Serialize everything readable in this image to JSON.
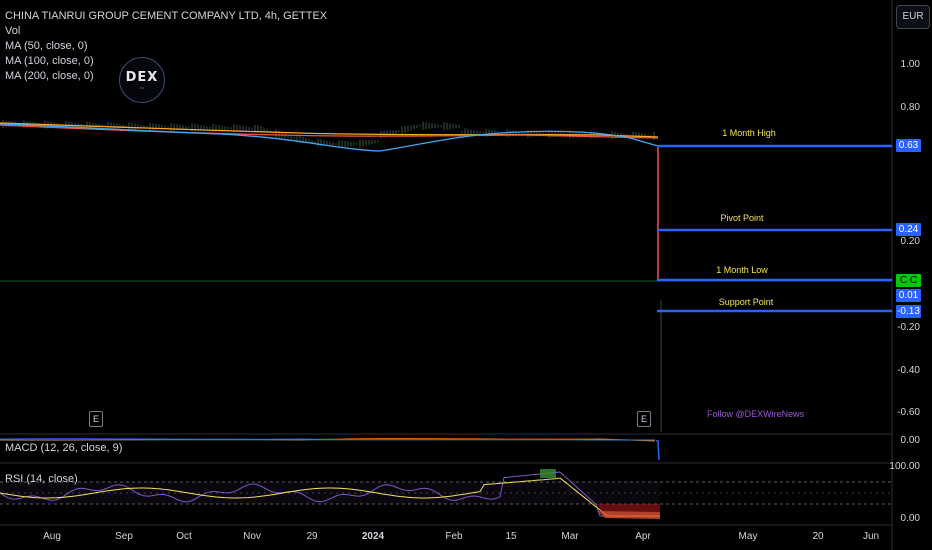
{
  "symbol_title": "CHINA TIANRUI GROUP CEMENT COMPANY LTD, 4h, GETTEX",
  "indicators": [
    "Vol",
    "MA (50, close, 0)",
    "MA (100, close, 0)",
    "MA (200, close, 0)"
  ],
  "currency": "EUR",
  "logo": {
    "text": "DEX",
    "icon": "dex-logo-icon"
  },
  "price_axis": [
    "1.00",
    "0.80",
    "0.20",
    "-0.20",
    "-0.40",
    "-0.60"
  ],
  "levels": [
    {
      "label": "1 Month High",
      "value": "0.63",
      "color": "#2962ff"
    },
    {
      "label": "Pivot Point",
      "value": "0.24",
      "color": "#2962ff"
    },
    {
      "label": "1 Month Low",
      "value": "0.01",
      "color": "#2962ff"
    },
    {
      "label": "Support Point",
      "value": "-0.13",
      "color": "#2962ff"
    }
  ],
  "last_price_tag": {
    "text": "C C",
    "color": "#00c805"
  },
  "earnings_markers": [
    "E",
    "E"
  ],
  "watermark": "Follow @DEXWireNews",
  "macd": {
    "title": "MACD (12, 26, close, 9)",
    "axis": [
      "0.00"
    ]
  },
  "rsi": {
    "title": "RSI (14, close)",
    "axis": [
      "100.00",
      "0.00"
    ]
  },
  "time_axis": [
    "Aug",
    "Sep",
    "Oct",
    "Nov",
    "29",
    "2024",
    "Feb",
    "15",
    "Mar",
    "Apr",
    "May",
    "20",
    "Jun"
  ]
}
